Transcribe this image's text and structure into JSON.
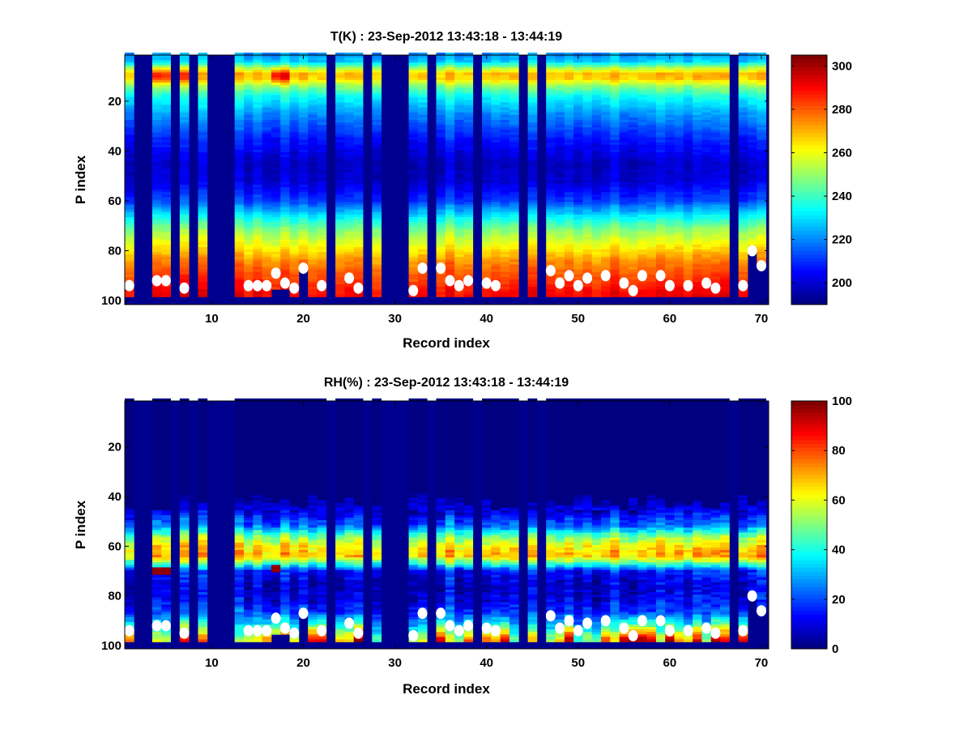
{
  "chart_data": [
    {
      "type": "heatmap",
      "title": "T(K) : 23-Sep-2012 13:43:18 - 13:44:19",
      "xlabel": "Record index",
      "ylabel": "P index",
      "xlim": [
        0.5,
        70.8
      ],
      "ylim": [
        1.5,
        101.6
      ],
      "y_reversed": true,
      "xticks": [
        10,
        20,
        30,
        40,
        50,
        60,
        70
      ],
      "yticks": [
        20,
        40,
        60,
        80,
        100
      ],
      "colormap": "jet",
      "clim": [
        190,
        305
      ],
      "colorbar_ticks": [
        200,
        220,
        240,
        260,
        280,
        300
      ],
      "n_records": 70,
      "n_levels": 100,
      "mean_profile": {
        "p": [
          1,
          4,
          7,
          9,
          11,
          14,
          18,
          25,
          35,
          45,
          52,
          60,
          66,
          72,
          78,
          84,
          90,
          96,
          98
        ],
        "value": [
          222,
          228,
          255,
          270,
          268,
          250,
          235,
          222,
          208,
          198,
          200,
          212,
          232,
          250,
          262,
          275,
          283,
          290,
          292
        ]
      },
      "warm_anomalies": [
        {
          "records": [
            4,
            5,
            7
          ],
          "p": 10,
          "value": 285
        },
        {
          "records": [
            17,
            18
          ],
          "p": 10,
          "value": 292
        }
      ]
    },
    {
      "type": "heatmap",
      "title": "RH(%) : 23-Sep-2012 13:43:18 - 13:44:19",
      "xlabel": "Record index",
      "ylabel": "P index",
      "xlim": [
        0.5,
        70.8
      ],
      "ylim": [
        1.5,
        101.3
      ],
      "y_reversed": true,
      "xticks": [
        10,
        20,
        30,
        40,
        50,
        60,
        70
      ],
      "yticks": [
        20,
        40,
        60,
        80,
        100
      ],
      "colormap": "jet",
      "clim": [
        0,
        100
      ],
      "colorbar_ticks": [
        0,
        20,
        40,
        60,
        80,
        100
      ],
      "n_records": 70,
      "n_levels": 100,
      "mean_profile": {
        "p": [
          1,
          35,
          40,
          47,
          52,
          56,
          60,
          64,
          67,
          70,
          76,
          82,
          87,
          91,
          95,
          98
        ],
        "value": [
          0,
          0,
          4,
          12,
          25,
          50,
          65,
          70,
          45,
          15,
          8,
          12,
          20,
          35,
          55,
          70
        ]
      },
      "moist_anomalies": [
        {
          "records": [
            4,
            5
          ],
          "p": 70,
          "value": 98
        },
        {
          "records": [
            17
          ],
          "p": 69,
          "value": 98
        }
      ]
    }
  ],
  "shared": {
    "missing_records": [
      2,
      3,
      6,
      8,
      10,
      11,
      12,
      23,
      27,
      29,
      30,
      31,
      34,
      39,
      44,
      46,
      67
    ],
    "column_bottom_override": [
      {
        "record": 17,
        "last_p": 95
      },
      {
        "record": 18,
        "last_p": 95
      },
      {
        "record": 20,
        "last_p": 87
      },
      {
        "record": 69,
        "last_p": 80
      },
      {
        "record": 70,
        "last_p": 86
      }
    ],
    "default_last_p": 98,
    "surface_points": [
      [
        1,
        94
      ],
      [
        4,
        92
      ],
      [
        5,
        92
      ],
      [
        7,
        95
      ],
      [
        14,
        94
      ],
      [
        15,
        94
      ],
      [
        16,
        94
      ],
      [
        17,
        89
      ],
      [
        18,
        93
      ],
      [
        19,
        95
      ],
      [
        20,
        87
      ],
      [
        22,
        94
      ],
      [
        25,
        91
      ],
      [
        26,
        95
      ],
      [
        32,
        96
      ],
      [
        33,
        87
      ],
      [
        35,
        87
      ],
      [
        36,
        92
      ],
      [
        37,
        94
      ],
      [
        38,
        92
      ],
      [
        40,
        93
      ],
      [
        41,
        94
      ],
      [
        47,
        88
      ],
      [
        48,
        93
      ],
      [
        49,
        90
      ],
      [
        50,
        94
      ],
      [
        51,
        91
      ],
      [
        53,
        90
      ],
      [
        55,
        93
      ],
      [
        56,
        96
      ],
      [
        57,
        90
      ],
      [
        59,
        90
      ],
      [
        60,
        94
      ],
      [
        62,
        94
      ],
      [
        64,
        93
      ],
      [
        65,
        95
      ],
      [
        68,
        94
      ],
      [
        69,
        80
      ],
      [
        70,
        86
      ]
    ],
    "background_color": "#00008f",
    "marker_color": "#ffffff"
  }
}
